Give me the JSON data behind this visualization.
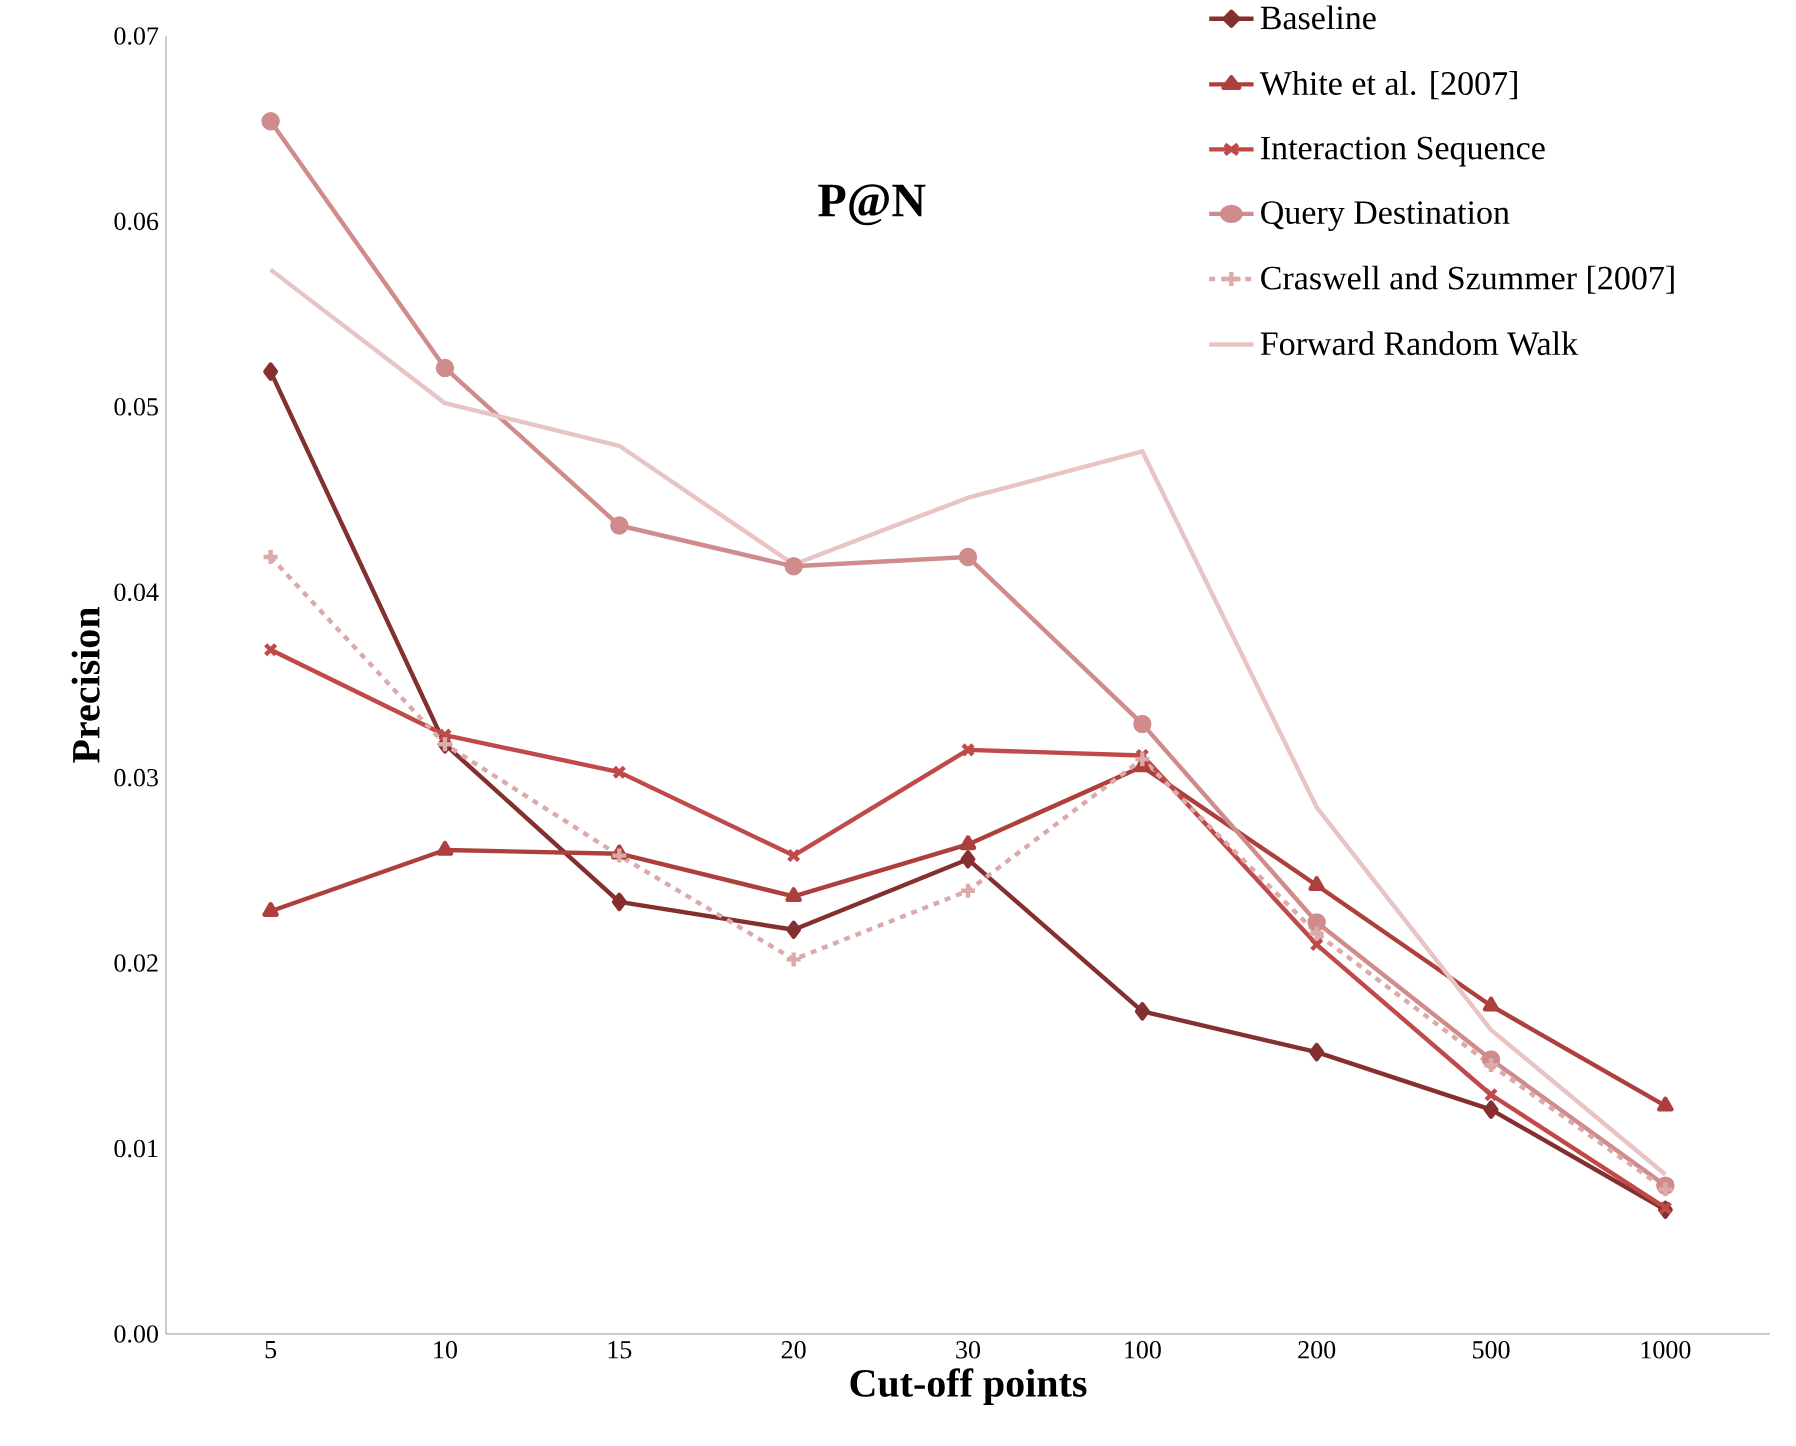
{
  "chart_data": {
    "type": "line",
    "title": "P@N",
    "xlabel": "Cut-off points",
    "ylabel": "Precision",
    "categories": [
      "5",
      "10",
      "15",
      "20",
      "30",
      "100",
      "200",
      "500",
      "1000"
    ],
    "ylim": [
      0,
      0.07
    ],
    "yticks": [
      {
        "value": 0,
        "label": "0.00"
      },
      {
        "value": 0.01,
        "label": "0.01"
      },
      {
        "value": 0.02,
        "label": "0.02"
      },
      {
        "value": 0.03,
        "label": "0.03"
      },
      {
        "value": 0.04,
        "label": "0.04"
      },
      {
        "value": 0.05,
        "label": "0.05"
      },
      {
        "value": 0.06,
        "label": "0.06"
      },
      {
        "value": 0.07,
        "label": "0.07"
      }
    ],
    "grid": false,
    "legend": "top right",
    "series": [
      {
        "name": "Baseline",
        "color": "#843030",
        "marker": "diamond",
        "line_style": "solid",
        "values": [
          0.0519,
          0.0318,
          0.0233,
          0.0218,
          0.0256,
          0.0174,
          0.0152,
          0.0121,
          0.0067
        ]
      },
      {
        "name": "White et al. [2007]",
        "color": "#ad3f3d",
        "marker": "triangle",
        "line_style": "solid",
        "values": [
          0.0228,
          0.0261,
          0.0259,
          0.0236,
          0.0264,
          0.0306,
          0.0242,
          0.0177,
          0.0123
        ]
      },
      {
        "name": "Interaction Sequence",
        "color": "#c0494a",
        "marker": "cross",
        "line_style": "solid",
        "values": [
          0.0369,
          0.0323,
          0.0303,
          0.0258,
          0.0315,
          0.0312,
          0.021,
          0.0129,
          0.0068
        ]
      },
      {
        "name": "Query Destination",
        "color": "#d08c8c",
        "marker": "circle",
        "line_style": "solid",
        "values": [
          0.0654,
          0.0521,
          0.0436,
          0.0414,
          0.0419,
          0.0329,
          0.0222,
          0.0148,
          0.008
        ]
      },
      {
        "name": "Craswell and Szummer [2007]",
        "color": "#dcaaaa",
        "marker": "plus",
        "line_style": "dashed",
        "values": [
          0.0419,
          0.0318,
          0.0258,
          0.0202,
          0.0239,
          0.031,
          0.0216,
          0.0145,
          0.0078
        ]
      },
      {
        "name": "Forward Random Walk",
        "color": "#e8c4c4",
        "marker": "none",
        "line_style": "solid",
        "values": [
          0.0574,
          0.0502,
          0.0479,
          0.0415,
          0.0451,
          0.0476,
          0.0284,
          0.0164,
          0.0086
        ]
      }
    ]
  }
}
